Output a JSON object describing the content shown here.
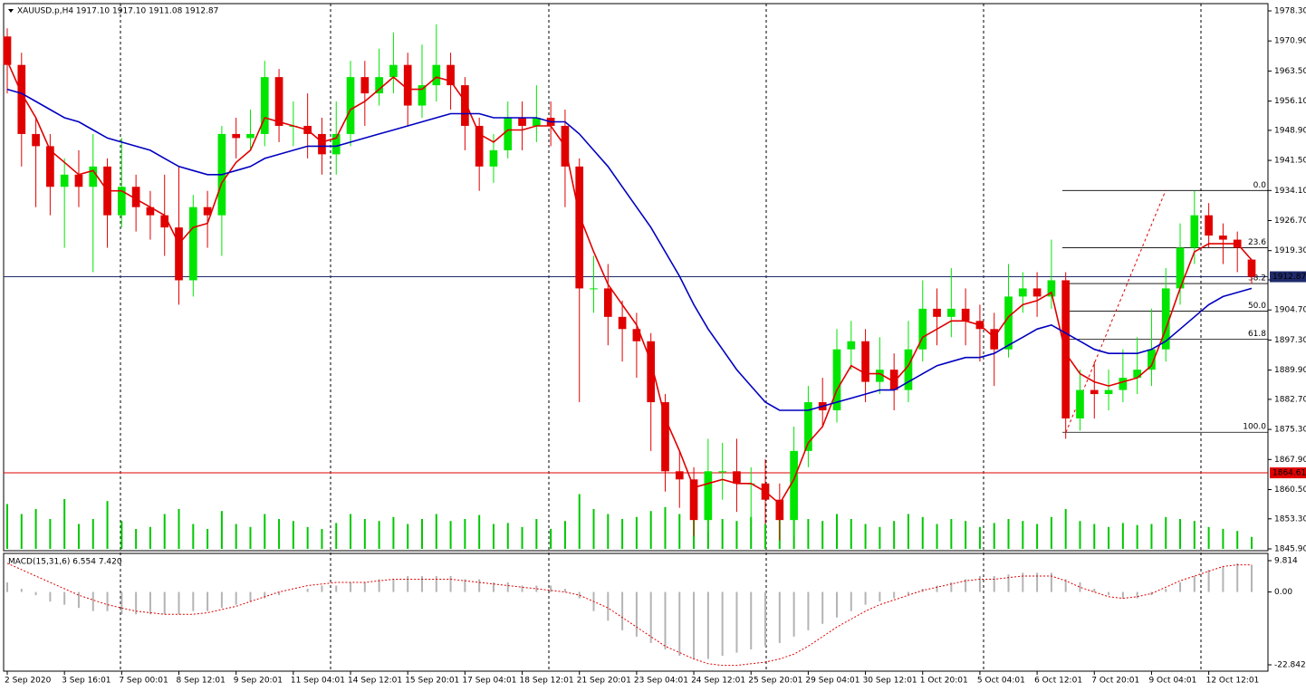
{
  "chart_data": [
    {
      "type": "candlestick",
      "title": "XAUUSD.p,H4  1917.10 1917.10 1911.08 1912.87",
      "categories": [
        "2 Sep 2020",
        null,
        null,
        null,
        "3 Sep 16:01",
        null,
        null,
        null,
        "7 Sep 00:01",
        null,
        null,
        null,
        "8 Sep 12:01",
        null,
        null,
        null,
        "9 Sep 20:01",
        null,
        null,
        null,
        "11 Sep 04:01",
        null,
        null,
        null,
        "14 Sep 12:01",
        null,
        null,
        null,
        "15 Sep 20:01",
        null,
        null,
        null,
        "17 Sep 04:01",
        null,
        null,
        null,
        "18 Sep 12:01",
        null,
        null,
        null,
        "21 Sep 20:01",
        null,
        null,
        null,
        "23 Sep 04:01",
        null,
        null,
        null,
        "24 Sep 12:01",
        null,
        null,
        null,
        "25 Sep 20:01",
        null,
        null,
        null,
        "29 Sep 04:01",
        null,
        null,
        null,
        "30 Sep 12:01",
        null,
        null,
        null,
        "1 Oct 20:01",
        null,
        null,
        null,
        "5 Oct 04:01",
        null,
        null,
        null,
        "6 Oct 12:01",
        null,
        null,
        null,
        "7 Oct 20:01",
        null,
        null,
        null,
        "9 Oct 04:01",
        null,
        null,
        null,
        "12 Oct 12:01",
        null,
        null,
        null
      ],
      "open": [
        1972,
        1965,
        1948,
        1945,
        1935,
        1938,
        1935,
        1940,
        1928,
        1935,
        1930,
        1928,
        1925,
        1912,
        1930,
        1928,
        1948,
        1947,
        1948,
        1962,
        1950,
        1950,
        1948,
        1943,
        1948,
        1962,
        1958,
        1962,
        1965,
        1955,
        1960,
        1965,
        1960,
        1950,
        1940,
        1944,
        1952,
        1950,
        1952,
        1950,
        1940,
        1910,
        1910,
        1903,
        1900,
        1897,
        1882,
        1865,
        1863,
        1853,
        1865,
        1865,
        1862,
        1862,
        1858,
        1853,
        1870,
        1882,
        1880,
        1895,
        1897,
        1887,
        1890,
        1885,
        1895,
        1905,
        1903,
        1905,
        1902,
        1900,
        1895,
        1908,
        1910,
        1908,
        1912,
        1878,
        1885,
        1884,
        1885,
        1888,
        1890,
        1895,
        1910,
        1920,
        1928,
        1923,
        1922,
        1917.1
      ],
      "high": [
        1974,
        1968,
        1952,
        1948,
        1942,
        1944,
        1948,
        1942,
        1947,
        1938,
        1934,
        1938,
        1940,
        1933,
        1934,
        1950,
        1952,
        1954,
        1966,
        1964,
        1956,
        1958,
        1952,
        1956,
        1966,
        1966,
        1969,
        1973,
        1968,
        1970,
        1975,
        1968,
        1962,
        1952,
        1948,
        1956,
        1956,
        1960,
        1956,
        1954,
        1942,
        1918,
        1916,
        1907,
        1904,
        1899,
        1884,
        1870,
        1866,
        1873,
        1872,
        1873,
        1866,
        1868,
        1862,
        1876,
        1886,
        1888,
        1900,
        1902,
        1900,
        1898,
        1894,
        1902,
        1912,
        1910,
        1915,
        1910,
        1906,
        1904,
        1916,
        1914,
        1914,
        1922,
        1914,
        1890,
        1892,
        1890,
        1895,
        1898,
        1905,
        1915,
        1926,
        1934,
        1931,
        1926,
        1924,
        1917.1
      ],
      "low": [
        1958,
        1940,
        1930,
        1928,
        1920,
        1930,
        1914,
        1920,
        1925,
        1924,
        1922,
        1918,
        1906,
        1908,
        1920,
        1918,
        1942,
        1944,
        1945,
        1946,
        1945,
        1942,
        1938,
        1938,
        1945,
        1950,
        1955,
        1958,
        1950,
        1952,
        1956,
        1954,
        1944,
        1934,
        1936,
        1942,
        1944,
        1946,
        1945,
        1930,
        1882,
        1904,
        1896,
        1892,
        1888,
        1870,
        1860,
        1856,
        1849,
        1850,
        1858,
        1855,
        1853,
        1852,
        1848,
        1849,
        1866,
        1876,
        1877,
        1890,
        1882,
        1884,
        1880,
        1882,
        1892,
        1896,
        1898,
        1896,
        1892,
        1886,
        1893,
        1904,
        1903,
        1905,
        1873,
        1875,
        1878,
        1880,
        1882,
        1884,
        1886,
        1892,
        1906,
        1916,
        1920,
        1916,
        1914,
        1911.08
      ],
      "close": [
        1965,
        1948,
        1945,
        1935,
        1938,
        1935,
        1940,
        1928,
        1935,
        1930,
        1928,
        1925,
        1912,
        1930,
        1928,
        1948,
        1947,
        1948,
        1962,
        1950,
        1950,
        1948,
        1943,
        1948,
        1962,
        1958,
        1962,
        1965,
        1955,
        1960,
        1965,
        1960,
        1950,
        1940,
        1944,
        1952,
        1950,
        1952,
        1950,
        1940,
        1910,
        1910,
        1903,
        1900,
        1897,
        1882,
        1865,
        1863,
        1853,
        1865,
        1865,
        1862,
        1862,
        1858,
        1853,
        1870,
        1882,
        1880,
        1895,
        1897,
        1887,
        1890,
        1885,
        1895,
        1905,
        1903,
        1905,
        1902,
        1900,
        1895,
        1908,
        1910,
        1908,
        1912,
        1878,
        1885,
        1884,
        1885,
        1888,
        1890,
        1895,
        1910,
        1920,
        1928,
        1923,
        1922,
        1920,
        1912.87
      ],
      "colors": {
        "up": "#00e600",
        "down": "#e00000"
      },
      "lines": [
        {
          "color": "#e00000",
          "values": [
            1966,
            1958,
            1952,
            1944,
            1941,
            1938,
            1939,
            1934,
            1934,
            1932,
            1930,
            1928,
            1921,
            1925,
            1926,
            1936,
            1941,
            1944,
            1952,
            1951,
            1950,
            1949,
            1946,
            1947,
            1954,
            1956,
            1959,
            1962,
            1959,
            1959,
            1962,
            1961,
            1956,
            1948,
            1946,
            1949,
            1949,
            1950,
            1950,
            1945,
            1928,
            1919,
            1911,
            1906,
            1901,
            1892,
            1878,
            1870,
            1861,
            1862,
            1863,
            1862,
            1862,
            1860,
            1857,
            1863,
            1872,
            1876,
            1885,
            1891,
            1889,
            1889,
            1887,
            1891,
            1898,
            1900,
            1902,
            1902,
            1901,
            1898,
            1903,
            1906,
            1907,
            1909,
            1894,
            1889,
            1887,
            1886,
            1887,
            1888,
            1891,
            1900,
            1910,
            1919,
            1921,
            1921,
            1921,
            1917
          ]
        },
        {
          "color": "#0000c0",
          "values": [
            1959,
            1958,
            1956,
            1954,
            1952,
            1951,
            1949,
            1947,
            1946,
            1945,
            1944,
            1942,
            1940,
            1939,
            1938,
            1938,
            1939,
            1940,
            1942,
            1943,
            1944,
            1945,
            1945,
            1945,
            1946,
            1947,
            1948,
            1949,
            1950,
            1951,
            1952,
            1953,
            1953,
            1953,
            1952,
            1952,
            1952,
            1952,
            1951,
            1951,
            1948,
            1944,
            1940,
            1935,
            1930,
            1925,
            1919,
            1913,
            1906,
            1900,
            1895,
            1890,
            1886,
            1882,
            1880,
            1880,
            1880,
            1881,
            1882,
            1883,
            1884,
            1885,
            1885,
            1887,
            1889,
            1891,
            1892,
            1893,
            1893,
            1894,
            1896,
            1898,
            1900,
            1901,
            1899,
            1897,
            1895,
            1894,
            1894,
            1894,
            1895,
            1897,
            1900,
            1903,
            1906,
            1908,
            1909,
            1910
          ]
        }
      ],
      "volume": {
        "color": "#00c800",
        "values": [
          45,
          35,
          40,
          30,
          50,
          25,
          30,
          48,
          28,
          20,
          22,
          35,
          40,
          25,
          20,
          38,
          25,
          22,
          35,
          30,
          28,
          22,
          20,
          26,
          35,
          30,
          28,
          32,
          25,
          30,
          35,
          28,
          30,
          34,
          25,
          26,
          22,
          30,
          20,
          28,
          55,
          40,
          35,
          30,
          32,
          38,
          42,
          35,
          45,
          40,
          30,
          28,
          32,
          25,
          38,
          40,
          30,
          28,
          35,
          30,
          25,
          22,
          28,
          35,
          32,
          25,
          30,
          28,
          22,
          26,
          30,
          28,
          25,
          32,
          40,
          28,
          25,
          22,
          26,
          24,
          25,
          32,
          30,
          28,
          22,
          20,
          18,
          12
        ]
      },
      "ylim": [
        1845.9,
        1978.3
      ],
      "yticks": [
        {
          "value": 1978.3,
          "label": "1978.30"
        },
        {
          "value": 1970.9,
          "label": "1970.90"
        },
        {
          "value": 1963.5,
          "label": "1963.50"
        },
        {
          "value": 1956.1,
          "label": "1956.10"
        },
        {
          "value": 1948.9,
          "label": "1948.90"
        },
        {
          "value": 1941.5,
          "label": "1941.50"
        },
        {
          "value": 1934.1,
          "label": "1934.10"
        },
        {
          "value": 1926.7,
          "label": "1926.70"
        },
        {
          "value": 1919.3,
          "label": "1919.30"
        },
        {
          "value": 1912.1,
          "label": "1912.10"
        },
        {
          "value": 1904.7,
          "label": "1904.70"
        },
        {
          "value": 1897.3,
          "label": "1897.30"
        },
        {
          "value": 1889.9,
          "label": "1889.90"
        },
        {
          "value": 1882.7,
          "label": "1882.70"
        },
        {
          "value": 1875.3,
          "label": "1875.30"
        },
        {
          "value": 1867.9,
          "label": "1867.90"
        },
        {
          "value": 1860.5,
          "label": "1860.50"
        },
        {
          "value": 1853.3,
          "label": "1853.30"
        },
        {
          "value": 1845.9,
          "label": "1845.90"
        }
      ],
      "price_lines": [
        {
          "value": 1912.87,
          "label": "1912.87",
          "color": "#1f2a6b"
        },
        {
          "value": 1864.61,
          "label": "1864.61",
          "color": "#e00000"
        }
      ],
      "fibonacci": [
        {
          "value": 1934.1,
          "label": "0.0"
        },
        {
          "value": 1920.0,
          "label": "23.6"
        },
        {
          "value": 1911.2,
          "label": "38.2"
        },
        {
          "value": 1904.4,
          "label": "50.0"
        },
        {
          "value": 1897.5,
          "label": "61.8"
        },
        {
          "value": 1874.6,
          "label": "100.0"
        }
      ]
    },
    {
      "type": "macd",
      "title": "MACD(15,31,6) 6.554 7.420",
      "histogram": {
        "color": "#b4b4b4",
        "values": [
          3,
          1,
          -1,
          -3,
          -4,
          -5,
          -6,
          -6,
          -7,
          -7,
          -7,
          -7,
          -7,
          -6,
          -6,
          -5,
          -4,
          -3,
          -2,
          -1,
          0,
          1,
          2,
          2,
          3,
          3,
          4,
          4,
          5,
          5,
          5,
          5,
          4,
          4,
          3,
          3,
          2,
          2,
          2,
          1,
          -2,
          -6,
          -9,
          -12,
          -14,
          -16,
          -18,
          -20,
          -21,
          -21,
          -20,
          -19,
          -18,
          -17,
          -16,
          -14,
          -12,
          -10,
          -8,
          -6,
          -4,
          -3,
          -2,
          -1,
          1,
          2,
          3,
          4,
          5,
          5,
          5.5,
          6,
          6,
          6,
          4,
          3,
          1,
          -1,
          -2,
          -2,
          -1,
          1,
          3,
          5,
          7,
          8,
          9,
          8.5
        ]
      },
      "signal": {
        "color": "#e00000",
        "values": [
          9,
          7,
          5,
          3,
          1,
          -1,
          -2.5,
          -4,
          -5,
          -6,
          -6.5,
          -7,
          -7,
          -7,
          -6.5,
          -5.5,
          -4.5,
          -3,
          -1.5,
          0,
          1,
          2,
          2.5,
          3,
          3,
          3,
          3.5,
          4,
          4,
          4,
          4,
          4,
          3.5,
          3,
          2.5,
          2,
          1.5,
          1,
          0.5,
          0,
          -1,
          -3,
          -5,
          -8,
          -11,
          -14,
          -17,
          -19,
          -21,
          -22.5,
          -23,
          -23,
          -22.5,
          -22,
          -21,
          -19.5,
          -17,
          -14,
          -11,
          -8.5,
          -6,
          -4,
          -2.5,
          -1,
          0.5,
          1.5,
          2.5,
          3.5,
          4,
          4,
          4.5,
          5,
          5,
          5,
          3.5,
          1.5,
          0,
          -1.5,
          -2,
          -1.5,
          -0.5,
          1.5,
          3.5,
          5,
          6.5,
          8,
          8.5,
          8.5
        ]
      },
      "ylim": [
        -22.842,
        9.814
      ],
      "yticks": [
        {
          "value": 9.814,
          "label": "9.814"
        },
        {
          "value": 0,
          "label": "0.00"
        },
        {
          "value": -22.842,
          "label": "-22.842"
        }
      ]
    }
  ]
}
